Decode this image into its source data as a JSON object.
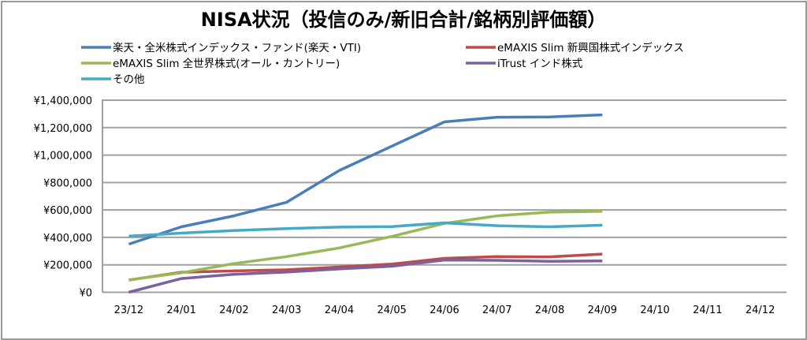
{
  "chart_data": {
    "type": "line",
    "title": "NISA状況（投信のみ/新旧合計/銘柄別評価額）",
    "xlabel": "",
    "ylabel": "",
    "categories": [
      "23/12",
      "24/01",
      "24/02",
      "24/03",
      "24/04",
      "24/05",
      "24/06",
      "24/07",
      "24/08",
      "24/09",
      "24/10",
      "24/11",
      "24/12"
    ],
    "ylim": [
      0,
      1400000
    ],
    "yticks": [
      0,
      200000,
      400000,
      600000,
      800000,
      1000000,
      1200000,
      1400000
    ],
    "ytick_labels": [
      "¥0",
      "¥200,000",
      "¥400,000",
      "¥600,000",
      "¥800,000",
      "¥1,000,000",
      "¥1,200,000",
      "¥1,400,000"
    ],
    "grid": true,
    "legend_position": "top",
    "series": [
      {
        "name": "楽天・全米株式インデックス・ファンド(楽天・VTI)",
        "color": "#4a7ebb",
        "values": [
          351000,
          477000,
          557000,
          656000,
          888000,
          1065000,
          1242000,
          1276000,
          1278000,
          1293000,
          null,
          null,
          null
        ]
      },
      {
        "name": "eMAXIS Slim 新興国株式インデックス",
        "color": "#be4b48",
        "values": [
          89000,
          146000,
          156000,
          164000,
          184000,
          205000,
          247000,
          260000,
          258000,
          279000,
          null,
          null,
          null
        ]
      },
      {
        "name": "eMAXIS Slim 全世界株式(オール・カントリー)",
        "color": "#98b954",
        "values": [
          90000,
          142000,
          209000,
          260000,
          323000,
          407000,
          502000,
          557000,
          584000,
          590000,
          null,
          null,
          null
        ]
      },
      {
        "name": "iTrust インド株式",
        "color": "#7d60a0",
        "values": [
          0,
          100000,
          131000,
          147000,
          170000,
          190000,
          235000,
          233000,
          226000,
          228000,
          null,
          null,
          null
        ]
      },
      {
        "name": "その他",
        "color": "#46aac5",
        "values": [
          409000,
          431000,
          450000,
          464000,
          475000,
          479000,
          506000,
          485000,
          477000,
          489000,
          null,
          null,
          null
        ]
      }
    ]
  }
}
